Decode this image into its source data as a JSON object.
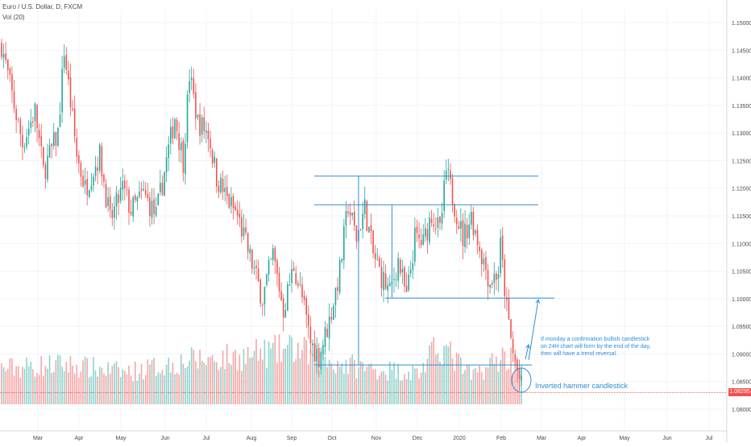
{
  "header": {
    "symbol_line": "Euro / U.S. Dollar, D, FXCM",
    "volume_line": "Vol (20)"
  },
  "colors": {
    "up": "#26a69a",
    "down": "#ef5350",
    "vol_up": "#8fd3cc",
    "vol_down": "#f6a6a6",
    "drawing": "#2e8fd6",
    "grid": "#f0f3fa",
    "axis_text": "#4a4a4a"
  },
  "annotations": {
    "note": "If monday a confirmation bullish candlestick on 24H chart will form by the end of the day, then will have a trend reversal.",
    "hammer_label": "Inverted hammer candlestick"
  },
  "chart_data": {
    "type": "candlestick",
    "title": "",
    "ylim": [
      1.0775,
      1.1525
    ],
    "y_ticks": [
      "1.15000",
      "1.14500",
      "1.14000",
      "1.13500",
      "1.13000",
      "1.12500",
      "1.12000",
      "1.11500",
      "1.11000",
      "1.10500",
      "1.10000",
      "1.09500",
      "1.09000",
      "1.08500",
      "1.08000"
    ],
    "x_ticks": [
      "Mar",
      "Apr",
      "May",
      "Jun",
      "Jul",
      "Aug",
      "Sep",
      "Oct",
      "Nov",
      "Dec",
      "2020",
      "Feb",
      "Mar",
      "Apr",
      "May",
      "Jun",
      "Jul"
    ],
    "last_price": "1.08295",
    "horizontal_levels": [
      1.1222,
      1.117,
      1.1001,
      1.088,
      1.083
    ],
    "vertical_segments": [
      {
        "x_index": 171,
        "from": 1.088,
        "to": 1.1222
      },
      {
        "x_index": 187,
        "from": 1.1001,
        "to": 1.117
      }
    ],
    "price_path": [
      [
        0,
        1.146
      ],
      [
        6,
        1.135
      ],
      [
        10,
        1.128
      ],
      [
        16,
        1.134
      ],
      [
        20,
        1.123
      ],
      [
        27,
        1.13
      ],
      [
        30,
        1.145
      ],
      [
        36,
        1.126
      ],
      [
        40,
        1.12
      ],
      [
        47,
        1.126
      ],
      [
        52,
        1.114
      ],
      [
        58,
        1.12
      ],
      [
        62,
        1.116
      ],
      [
        68,
        1.119
      ],
      [
        74,
        1.115
      ],
      [
        79,
        1.125
      ],
      [
        83,
        1.133
      ],
      [
        87,
        1.125
      ],
      [
        90,
        1.1405
      ],
      [
        94,
        1.132
      ],
      [
        99,
        1.13
      ],
      [
        103,
        1.122
      ],
      [
        108,
        1.118
      ],
      [
        113,
        1.115
      ],
      [
        117,
        1.11
      ],
      [
        121,
        1.105
      ],
      [
        125,
        1.1
      ],
      [
        130,
        1.108
      ],
      [
        135,
        1.098
      ],
      [
        140,
        1.106
      ],
      [
        144,
        1.1
      ],
      [
        148,
        1.092
      ],
      [
        152,
        1.0895
      ],
      [
        157,
        1.096
      ],
      [
        162,
        1.105
      ],
      [
        166,
        1.117
      ],
      [
        170,
        1.111
      ],
      [
        174,
        1.1165
      ],
      [
        178,
        1.108
      ],
      [
        182,
        1.104
      ],
      [
        186,
        1.101
      ],
      [
        190,
        1.107
      ],
      [
        194,
        1.1
      ],
      [
        198,
        1.111
      ],
      [
        202,
        1.11
      ],
      [
        206,
        1.1155
      ],
      [
        210,
        1.112
      ],
      [
        213,
        1.123
      ],
      [
        217,
        1.117
      ],
      [
        221,
        1.111
      ],
      [
        225,
        1.115
      ],
      [
        230,
        1.108
      ],
      [
        234,
        1.103
      ],
      [
        238,
        1.105
      ],
      [
        239,
        1.1095
      ],
      [
        242,
        1.098
      ],
      [
        245,
        1.09
      ],
      [
        249,
        1.084
      ]
    ],
    "volume_path": [
      [
        0,
        0.45
      ],
      [
        30,
        0.5
      ],
      [
        60,
        0.4
      ],
      [
        90,
        0.55
      ],
      [
        115,
        0.6
      ],
      [
        140,
        0.7
      ],
      [
        155,
        0.55
      ],
      [
        175,
        0.45
      ],
      [
        200,
        0.4
      ],
      [
        210,
        0.75
      ],
      [
        225,
        0.35
      ],
      [
        240,
        0.6
      ],
      [
        249,
        0.55
      ]
    ],
    "candle_count": 250,
    "volume_max_fraction": 1.0
  }
}
